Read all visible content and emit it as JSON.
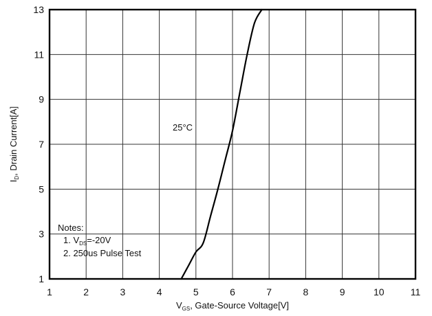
{
  "chart_data": {
    "type": "line",
    "xlabel": {
      "main": "V",
      "sub": "GS",
      "rest": ", Gate-Source Voltage[V]"
    },
    "ylabel": {
      "main": "I",
      "sub": "D",
      "rest": ", Drain Current[A]"
    },
    "xlim": [
      1,
      11
    ],
    "ylim": [
      1,
      13
    ],
    "xticks": [
      "1",
      "2",
      "3",
      "4",
      "5",
      "6",
      "7",
      "8",
      "9",
      "10",
      "11"
    ],
    "yticks": [
      "1",
      "3",
      "5",
      "7",
      "9",
      "11",
      "13"
    ],
    "grid": true,
    "series": [
      {
        "name": "",
        "x": [
          4.6,
          4.8,
          5.0,
          5.2,
          5.4,
          5.6,
          5.8,
          6.0,
          6.2,
          6.4,
          6.6,
          6.8
        ],
        "y": [
          1.0,
          1.6,
          2.2,
          2.6,
          3.8,
          5.0,
          6.3,
          7.6,
          9.3,
          11.0,
          12.4,
          13.0
        ]
      }
    ],
    "annotation": "25°C",
    "notes": {
      "title": "Notes:",
      "line1": {
        "prefix": "1. V",
        "sub": "DS",
        "rest": "=-20V"
      },
      "line2": "2. 250us Pulse Test"
    }
  }
}
